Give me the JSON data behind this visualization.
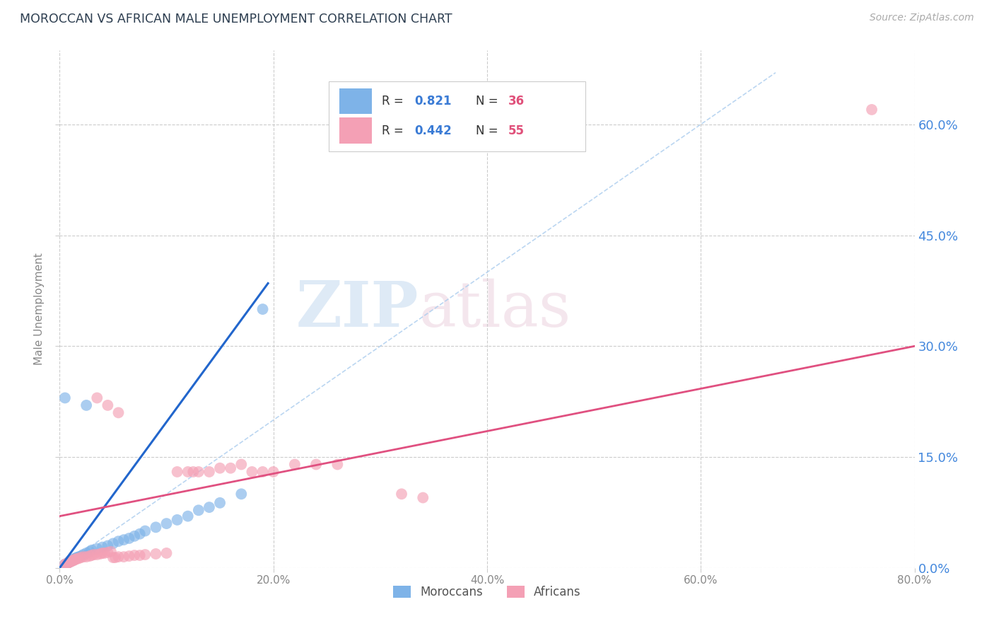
{
  "title": "MOROCCAN VS AFRICAN MALE UNEMPLOYMENT CORRELATION CHART",
  "source_text": "Source: ZipAtlas.com",
  "ylabel": "Male Unemployment",
  "xlim": [
    0.0,
    0.8
  ],
  "ylim": [
    0.0,
    0.7
  ],
  "xticks": [
    0.0,
    0.2,
    0.4,
    0.6,
    0.8
  ],
  "xtick_labels": [
    "0.0%",
    "20.0%",
    "40.0%",
    "60.0%",
    "80.0%"
  ],
  "yticks": [
    0.0,
    0.15,
    0.3,
    0.45,
    0.6
  ],
  "ytick_labels": [
    "0.0%",
    "15.0%",
    "30.0%",
    "45.0%",
    "60.0%"
  ],
  "moroccan_color": "#7EB3E8",
  "african_color": "#F4A0B5",
  "moroccan_R": 0.821,
  "moroccan_N": 36,
  "african_R": 0.442,
  "african_N": 55,
  "legend_R_color": "#3A7BD5",
  "legend_N_color": "#E0507A",
  "moroccan_scatter": [
    [
      0.005,
      0.005
    ],
    [
      0.007,
      0.006
    ],
    [
      0.008,
      0.007
    ],
    [
      0.009,
      0.008
    ],
    [
      0.01,
      0.01
    ],
    [
      0.012,
      0.01
    ],
    [
      0.013,
      0.012
    ],
    [
      0.015,
      0.013
    ],
    [
      0.016,
      0.014
    ],
    [
      0.018,
      0.015
    ],
    [
      0.02,
      0.016
    ],
    [
      0.022,
      0.018
    ],
    [
      0.025,
      0.02
    ],
    [
      0.028,
      0.022
    ],
    [
      0.03,
      0.024
    ],
    [
      0.035,
      0.026
    ],
    [
      0.04,
      0.028
    ],
    [
      0.045,
      0.03
    ],
    [
      0.05,
      0.033
    ],
    [
      0.055,
      0.036
    ],
    [
      0.06,
      0.038
    ],
    [
      0.065,
      0.04
    ],
    [
      0.07,
      0.043
    ],
    [
      0.075,
      0.046
    ],
    [
      0.08,
      0.05
    ],
    [
      0.09,
      0.055
    ],
    [
      0.1,
      0.06
    ],
    [
      0.11,
      0.065
    ],
    [
      0.12,
      0.07
    ],
    [
      0.13,
      0.078
    ],
    [
      0.14,
      0.082
    ],
    [
      0.15,
      0.088
    ],
    [
      0.17,
      0.1
    ],
    [
      0.19,
      0.35
    ],
    [
      0.025,
      0.22
    ],
    [
      0.005,
      0.23
    ]
  ],
  "african_scatter": [
    [
      0.005,
      0.005
    ],
    [
      0.006,
      0.005
    ],
    [
      0.007,
      0.006
    ],
    [
      0.008,
      0.007
    ],
    [
      0.009,
      0.008
    ],
    [
      0.01,
      0.008
    ],
    [
      0.011,
      0.009
    ],
    [
      0.012,
      0.01
    ],
    [
      0.013,
      0.01
    ],
    [
      0.014,
      0.011
    ],
    [
      0.015,
      0.012
    ],
    [
      0.016,
      0.012
    ],
    [
      0.018,
      0.013
    ],
    [
      0.02,
      0.014
    ],
    [
      0.022,
      0.015
    ],
    [
      0.025,
      0.015
    ],
    [
      0.028,
      0.016
    ],
    [
      0.03,
      0.017
    ],
    [
      0.032,
      0.018
    ],
    [
      0.035,
      0.018
    ],
    [
      0.038,
      0.019
    ],
    [
      0.04,
      0.02
    ],
    [
      0.042,
      0.02
    ],
    [
      0.045,
      0.021
    ],
    [
      0.048,
      0.022
    ],
    [
      0.05,
      0.014
    ],
    [
      0.052,
      0.014
    ],
    [
      0.055,
      0.015
    ],
    [
      0.06,
      0.015
    ],
    [
      0.065,
      0.016
    ],
    [
      0.07,
      0.017
    ],
    [
      0.075,
      0.017
    ],
    [
      0.08,
      0.018
    ],
    [
      0.09,
      0.019
    ],
    [
      0.1,
      0.02
    ],
    [
      0.11,
      0.13
    ],
    [
      0.12,
      0.13
    ],
    [
      0.125,
      0.13
    ],
    [
      0.13,
      0.13
    ],
    [
      0.14,
      0.13
    ],
    [
      0.15,
      0.135
    ],
    [
      0.16,
      0.135
    ],
    [
      0.17,
      0.14
    ],
    [
      0.18,
      0.13
    ],
    [
      0.19,
      0.13
    ],
    [
      0.2,
      0.13
    ],
    [
      0.22,
      0.14
    ],
    [
      0.24,
      0.14
    ],
    [
      0.26,
      0.14
    ],
    [
      0.035,
      0.23
    ],
    [
      0.045,
      0.22
    ],
    [
      0.055,
      0.21
    ],
    [
      0.32,
      0.1
    ],
    [
      0.34,
      0.095
    ],
    [
      0.76,
      0.62
    ]
  ],
  "moroccan_line_color": "#2266CC",
  "african_line_color": "#E05080",
  "ref_line_color": "#AACCEE",
  "background_color": "#FFFFFF",
  "grid_color": "#CCCCCC",
  "watermark_zip": "ZIP",
  "watermark_atlas": "atlas",
  "title_color": "#2D3E50",
  "axis_label_color": "#888888",
  "ytick_label_color": "#4488DD",
  "xtick_label_color": "#888888",
  "legend_text_color": "#333333"
}
